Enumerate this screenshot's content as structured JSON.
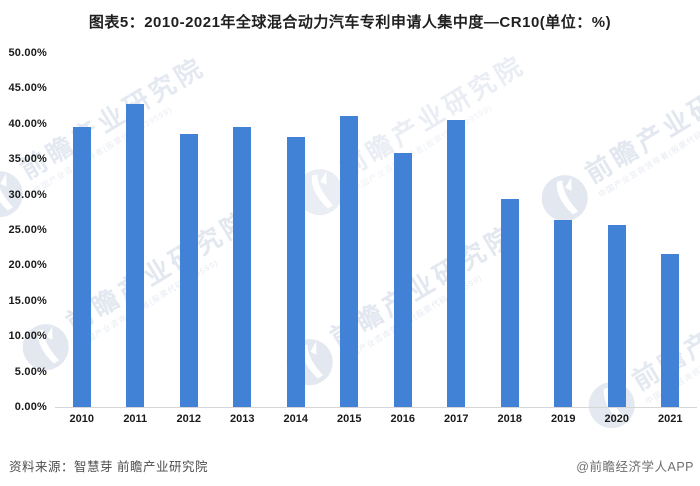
{
  "title": "图表5：2010-2021年全球混合动力汽车专利申请人集中度—CR10(单位：%)",
  "chart_data": {
    "type": "bar",
    "title": "图表5：2010-2021年全球混合动力汽车专利申请人集中度—CR10(单位：%)",
    "unit": "%",
    "categories": [
      "2010",
      "2011",
      "2012",
      "2013",
      "2014",
      "2015",
      "2016",
      "2017",
      "2018",
      "2019",
      "2020",
      "2021"
    ],
    "values": [
      39.6,
      42.8,
      38.5,
      39.6,
      38.1,
      41.1,
      35.9,
      40.6,
      29.4,
      26.4,
      25.7,
      21.6
    ],
    "xlabel": "",
    "ylabel": "",
    "ylim": [
      0,
      50
    ],
    "ytick_step": 5,
    "ytick_labels": [
      "50.00%",
      "45.00%",
      "40.00%",
      "35.00%",
      "30.00%",
      "25.00%",
      "20.00%",
      "15.00%",
      "10.00%",
      "5.00%",
      "0.00%"
    ],
    "grid": false,
    "legend": "none",
    "bar_color": "#4182d7",
    "axis_line_color": "#d6d6d6"
  },
  "watermark": {
    "brand": "前瞻产业研究院",
    "tagline": "中国产业咨询领导者(股票代码:839599)",
    "color": "#e2e7f0"
  },
  "footer": {
    "source": "资料来源：智慧芽 前瞻产业研究院",
    "credit": "@前瞻经济学人APP"
  }
}
